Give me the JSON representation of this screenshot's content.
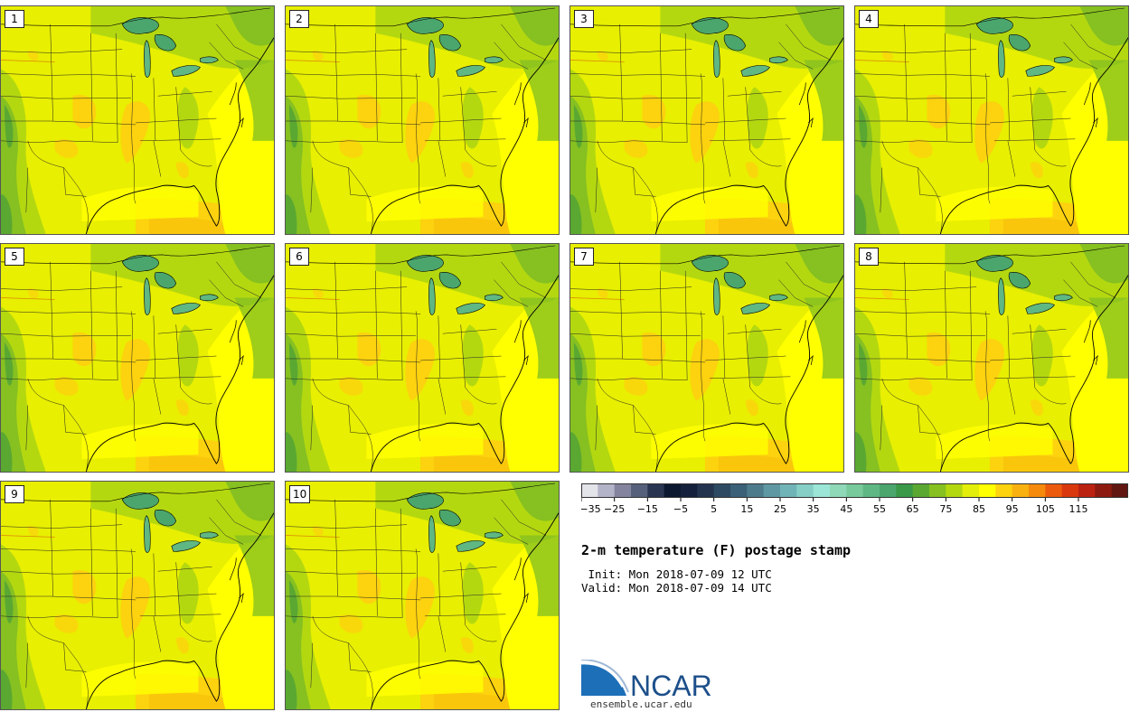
{
  "panels": [
    {
      "label": "1"
    },
    {
      "label": "2"
    },
    {
      "label": "3"
    },
    {
      "label": "4"
    },
    {
      "label": "5"
    },
    {
      "label": "6"
    },
    {
      "label": "7"
    },
    {
      "label": "8"
    },
    {
      "label": "9"
    },
    {
      "label": "10"
    }
  ],
  "colorbar": {
    "ticks": [
      "−35",
      "−25",
      "−15",
      "−5",
      "5",
      "15",
      "25",
      "35",
      "45",
      "55",
      "65",
      "75",
      "85",
      "95",
      "105",
      "115"
    ],
    "colors": [
      "#e3e3ea",
      "#b4b4c8",
      "#84849e",
      "#56607a",
      "#2a3552",
      "#0c1730",
      "#15203c",
      "#24344f",
      "#2e4a62",
      "#3a6177",
      "#4d7b8c",
      "#5f98a3",
      "#71b4b8",
      "#86cfc6",
      "#9be6d6",
      "#8fd8b8",
      "#78c99c",
      "#5fb783",
      "#4ba66d",
      "#3a9849",
      "#5aa832",
      "#86c021",
      "#b4d810",
      "#e3ef0a",
      "#ffff00",
      "#fdd20e",
      "#f8b10f",
      "#f58a0c",
      "#ec5a0e",
      "#d9380e",
      "#bb2210",
      "#8d1a0f",
      "#611612"
    ]
  },
  "title": "2-m temperature (F) postage stamp",
  "init": " Init: Mon 2018-07-09 12 UTC",
  "valid": "Valid: Mon 2018-07-09 14 UTC",
  "logo": {
    "text": "NCAR",
    "url": "ensemble.ucar.edu"
  }
}
